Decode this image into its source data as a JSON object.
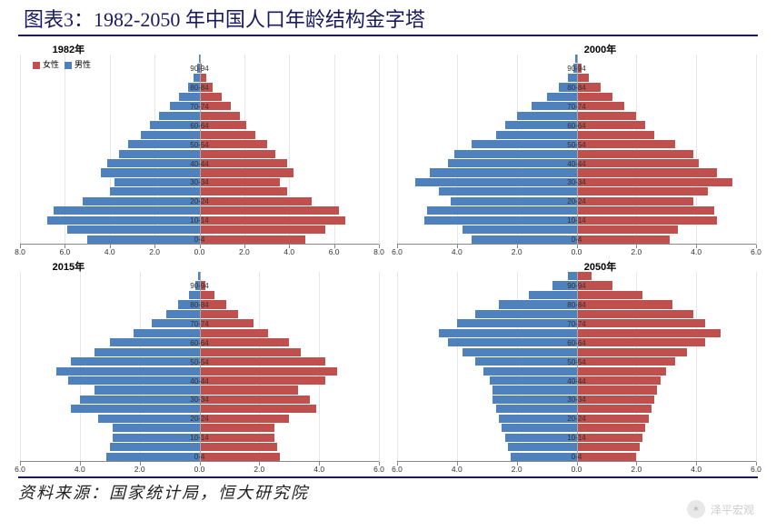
{
  "title": "图表3：1982-2050 年中国人口年龄结构金字塔",
  "source": "资料来源：国家统计局，恒大研究院",
  "watermark": "泽平宏观",
  "legend": {
    "female": "女性",
    "male": "男性"
  },
  "colors": {
    "female": "#c0504d",
    "male": "#4f81bd",
    "title_text": "#1a1a5e",
    "axis": "#888888"
  },
  "age_labels": [
    "0-4",
    "",
    "10-14",
    "",
    "20-24",
    "",
    "30-34",
    "",
    "40-44",
    "",
    "50-54",
    "",
    "60-64",
    "",
    "70-74",
    "",
    "80-84",
    "",
    "90-94",
    ""
  ],
  "panels": [
    {
      "id": "p1982",
      "title": "1982年",
      "title_left_pct": 11,
      "x_ticks": [
        8.0,
        6.0,
        4.0,
        2.0,
        0.0,
        2.0,
        4.0,
        6.0,
        8.0
      ],
      "x_max": 8.0,
      "show_legend": true,
      "male": [
        5.0,
        5.9,
        6.8,
        6.5,
        5.2,
        4.0,
        3.8,
        4.4,
        4.1,
        3.6,
        3.2,
        2.6,
        2.2,
        1.8,
        1.3,
        0.9,
        0.5,
        0.25,
        0.1,
        0.03
      ],
      "female": [
        4.7,
        5.6,
        6.5,
        6.2,
        5.0,
        3.9,
        3.6,
        4.2,
        3.9,
        3.4,
        3.0,
        2.5,
        2.1,
        1.8,
        1.4,
        1.0,
        0.6,
        0.3,
        0.12,
        0.04
      ]
    },
    {
      "id": "p2000",
      "title": "2000年",
      "title_left_pct": 52,
      "x_ticks": [
        6.0,
        4.0,
        2.0,
        0.0,
        2.0,
        4.0,
        6.0
      ],
      "x_max": 6.0,
      "show_legend": false,
      "male": [
        3.5,
        3.8,
        5.1,
        5.0,
        4.2,
        4.6,
        5.4,
        4.9,
        4.3,
        4.1,
        3.5,
        2.7,
        2.4,
        2.0,
        1.5,
        1.0,
        0.6,
        0.3,
        0.12,
        0.04
      ],
      "female": [
        3.1,
        3.4,
        4.7,
        4.6,
        3.9,
        4.4,
        5.2,
        4.7,
        4.1,
        3.9,
        3.3,
        2.6,
        2.3,
        2.0,
        1.6,
        1.2,
        0.8,
        0.4,
        0.16,
        0.05
      ]
    },
    {
      "id": "p2015",
      "title": "2015年",
      "title_left_pct": 11,
      "x_ticks": [
        6.0,
        4.0,
        2.0,
        0.0,
        2.0,
        4.0,
        6.0
      ],
      "x_max": 6.0,
      "show_legend": false,
      "male": [
        3.1,
        3.0,
        2.9,
        2.9,
        3.4,
        4.3,
        4.0,
        3.5,
        4.4,
        4.8,
        4.3,
        3.5,
        3.0,
        2.2,
        1.6,
        1.1,
        0.7,
        0.35,
        0.14,
        0.04
      ],
      "female": [
        2.7,
        2.6,
        2.5,
        2.5,
        3.0,
        3.9,
        3.7,
        3.3,
        4.2,
        4.6,
        4.2,
        3.4,
        3.0,
        2.3,
        1.8,
        1.3,
        0.9,
        0.5,
        0.2,
        0.06
      ]
    },
    {
      "id": "p2050",
      "title": "2050年",
      "title_left_pct": 52,
      "x_ticks": [
        6.0,
        4.0,
        2.0,
        0.0,
        2.0,
        4.0,
        6.0
      ],
      "x_max": 6.0,
      "show_legend": false,
      "male": [
        2.2,
        2.3,
        2.4,
        2.5,
        2.6,
        2.7,
        2.8,
        2.8,
        2.9,
        3.1,
        3.4,
        3.8,
        4.3,
        4.6,
        4.0,
        3.4,
        2.6,
        1.6,
        0.8,
        0.3
      ],
      "female": [
        2.0,
        2.1,
        2.2,
        2.3,
        2.4,
        2.5,
        2.6,
        2.7,
        2.8,
        3.0,
        3.3,
        3.7,
        4.3,
        4.8,
        4.3,
        3.9,
        3.2,
        2.2,
        1.2,
        0.5
      ]
    }
  ]
}
